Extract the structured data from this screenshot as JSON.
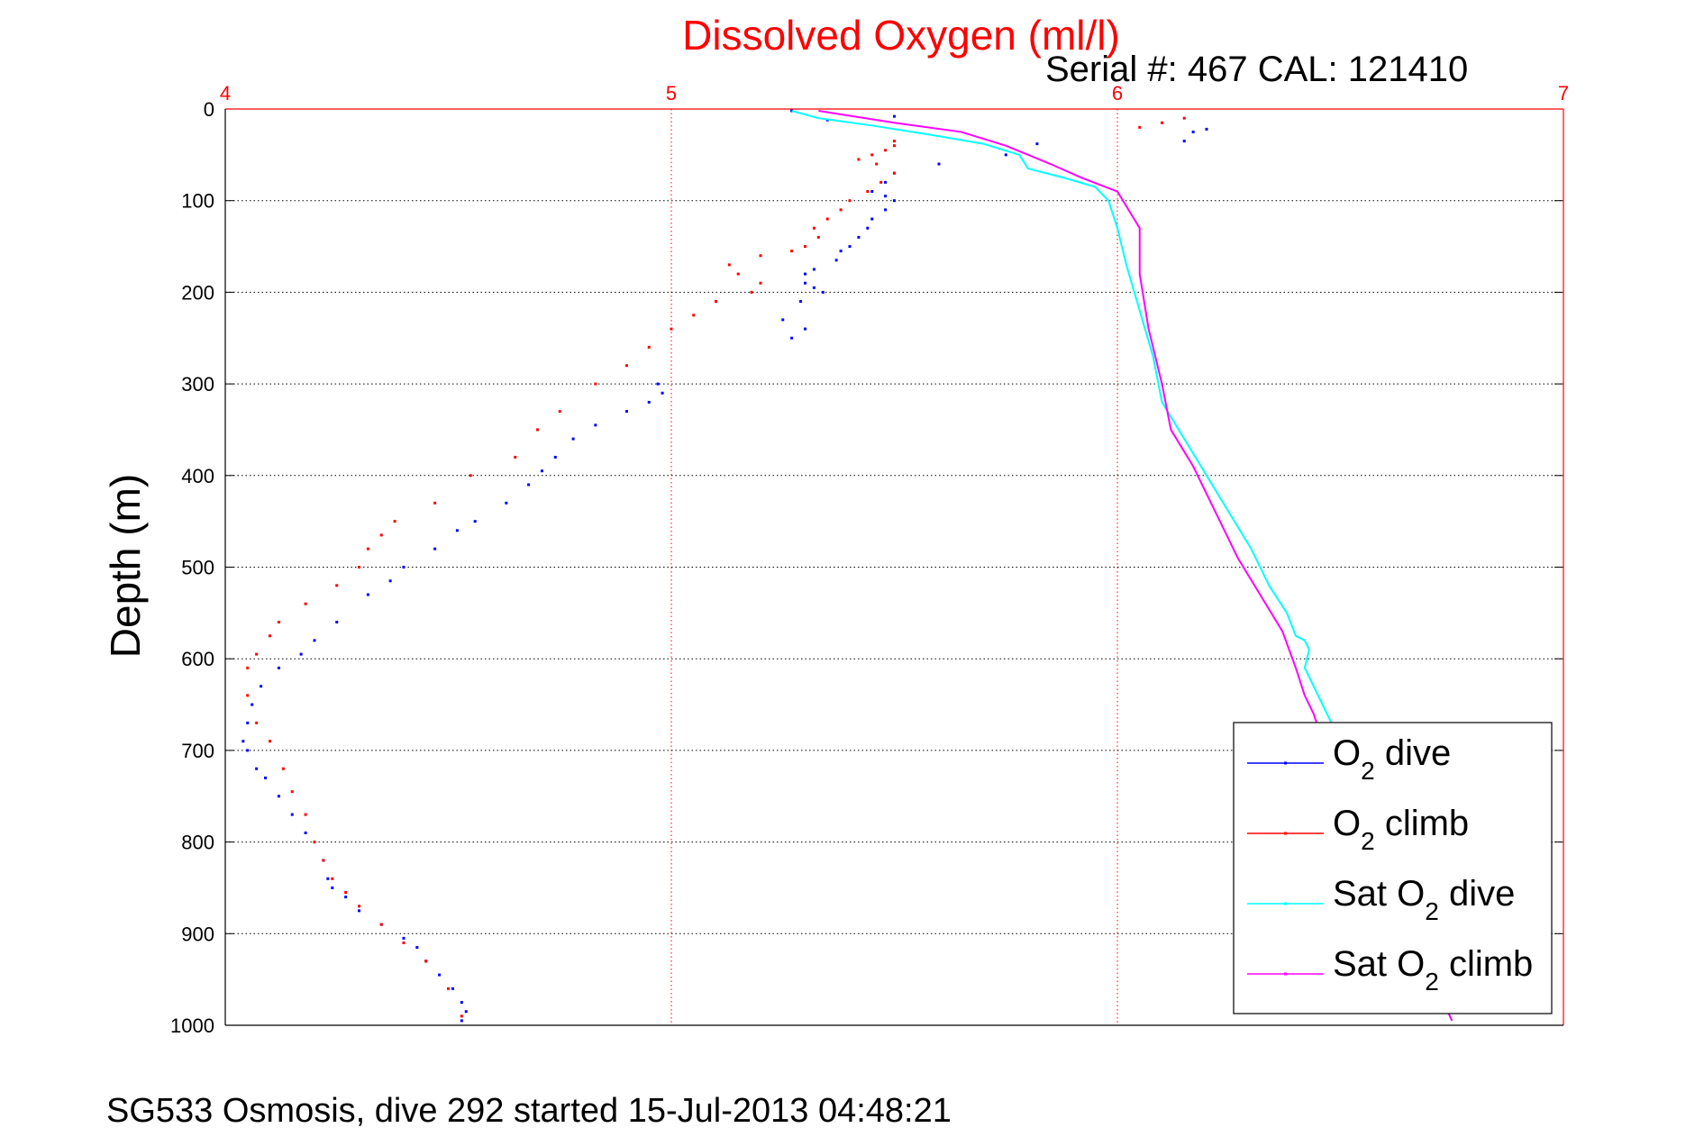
{
  "figure": {
    "title": "Dissolved Oxygen (ml/l)",
    "serial_label": "Serial #: 467  CAL: 121410",
    "footer": "SG533 Osmosis, dive 292 started 15-Jul-2013 04:48:21"
  },
  "colors": {
    "o2_dive": "#0000ff",
    "o2_climb": "#ff0000",
    "sat_dive": "#00ffff",
    "sat_climb": "#ff00ff",
    "top_axis": "#ff0000",
    "grid": "#000000"
  },
  "chart_data": {
    "type": "scatter",
    "title": "Dissolved Oxygen (ml/l)",
    "xlabel": "",
    "ylabel": "Depth (m)",
    "xlim": [
      4,
      7
    ],
    "ylim": [
      0,
      1000
    ],
    "y_reversed": true,
    "x_axis_position": "top",
    "x_ticks": [
      "4",
      "5",
      "6",
      "7"
    ],
    "y_ticks": [
      "0",
      "100",
      "200",
      "300",
      "400",
      "500",
      "600",
      "700",
      "800",
      "900",
      "1000"
    ],
    "grid": true,
    "legend_position": "bottom-right",
    "series": [
      {
        "legend": {
          "main": "O",
          "sub": "2",
          "rest": " dive"
        },
        "color": "#0000ff",
        "style": "dots",
        "x": [
          5.27,
          5.5,
          6.17,
          5.35,
          6.2,
          5.82,
          6.15,
          5.75,
          5.6,
          5.5,
          5.48,
          5.45,
          5.48,
          5.5,
          5.48,
          5.45,
          5.44,
          5.42,
          5.4,
          5.38,
          5.37,
          5.32,
          5.3,
          5.3,
          5.32,
          5.34,
          5.29,
          5.25,
          5.3,
          5.27,
          4.97,
          4.98,
          4.95,
          4.9,
          4.83,
          4.78,
          4.74,
          4.71,
          4.68,
          4.63,
          4.56,
          4.52,
          4.47,
          4.4,
          4.37,
          4.32,
          4.25,
          4.2,
          4.17,
          4.12,
          4.08,
          4.06,
          4.05,
          4.04,
          4.05,
          4.07,
          4.09,
          4.12,
          4.15,
          4.18,
          4.2,
          4.22,
          4.23,
          4.24,
          4.27,
          4.3,
          4.35,
          4.4,
          4.43,
          4.45,
          4.48,
          4.51,
          4.53,
          4.54,
          4.53
        ],
        "y": [
          2,
          8,
          25,
          12,
          22,
          38,
          35,
          50,
          60,
          70,
          80,
          90,
          95,
          100,
          110,
          120,
          130,
          140,
          150,
          155,
          165,
          175,
          180,
          190,
          195,
          200,
          210,
          230,
          240,
          250,
          300,
          310,
          320,
          330,
          345,
          360,
          380,
          395,
          410,
          430,
          450,
          460,
          480,
          500,
          515,
          530,
          560,
          580,
          595,
          610,
          630,
          650,
          670,
          690,
          700,
          720,
          730,
          750,
          770,
          790,
          800,
          820,
          840,
          850,
          860,
          875,
          890,
          905,
          915,
          930,
          945,
          960,
          975,
          985,
          995
        ]
      },
      {
        "legend": {
          "main": "O",
          "sub": "2",
          "rest": " climb"
        },
        "color": "#ff0000",
        "style": "dots",
        "x": [
          6.15,
          6.1,
          6.05,
          5.5,
          5.5,
          5.48,
          5.45,
          5.42,
          5.46,
          5.5,
          5.47,
          5.44,
          5.4,
          5.38,
          5.35,
          5.32,
          5.33,
          5.3,
          5.27,
          5.2,
          5.13,
          5.15,
          5.2,
          5.18,
          5.1,
          5.05,
          5.0,
          4.95,
          4.9,
          4.83,
          4.75,
          4.7,
          4.65,
          4.55,
          4.47,
          4.38,
          4.35,
          4.32,
          4.3,
          4.25,
          4.18,
          4.12,
          4.1,
          4.07,
          4.05,
          4.05,
          4.07,
          4.1,
          4.13,
          4.15,
          4.18,
          4.2,
          4.22,
          4.24,
          4.27,
          4.3,
          4.35,
          4.4,
          4.45,
          4.5,
          4.53
        ],
        "y": [
          10,
          15,
          20,
          35,
          40,
          45,
          50,
          55,
          60,
          70,
          80,
          90,
          100,
          110,
          120,
          130,
          140,
          150,
          155,
          160,
          170,
          180,
          190,
          200,
          210,
          225,
          240,
          260,
          280,
          300,
          330,
          350,
          380,
          400,
          430,
          450,
          465,
          480,
          500,
          520,
          540,
          560,
          575,
          595,
          610,
          640,
          670,
          690,
          720,
          745,
          770,
          800,
          820,
          840,
          855,
          870,
          890,
          910,
          930,
          960,
          990
        ]
      },
      {
        "legend": {
          "main": "Sat O",
          "sub": "2",
          "rest": " dive"
        },
        "color": "#00ffff",
        "style": "line",
        "x": [
          5.27,
          5.33,
          5.45,
          5.58,
          5.7,
          5.78,
          5.8,
          5.88,
          5.95,
          5.98,
          6.0,
          6.02,
          6.05,
          6.08,
          6.1,
          6.15,
          6.2,
          6.25,
          6.3,
          6.34,
          6.38,
          6.4,
          6.42,
          6.43,
          6.42,
          6.45,
          6.48,
          6.5,
          6.52,
          6.55,
          6.6,
          6.65,
          6.7,
          6.75
        ],
        "y": [
          2,
          10,
          18,
          28,
          38,
          50,
          65,
          75,
          85,
          100,
          130,
          170,
          220,
          270,
          320,
          360,
          400,
          440,
          480,
          520,
          550,
          575,
          580,
          590,
          610,
          640,
          670,
          700,
          730,
          760,
          820,
          880,
          940,
          995
        ]
      },
      {
        "legend": {
          "main": "Sat O",
          "sub": "2",
          "rest": " climb"
        },
        "color": "#ff00ff",
        "style": "line",
        "x": [
          5.33,
          5.5,
          5.65,
          5.75,
          5.85,
          5.92,
          6.0,
          6.05,
          6.05,
          6.07,
          6.1,
          6.12,
          6.17,
          6.22,
          6.27,
          6.32,
          6.37,
          6.4,
          6.42,
          6.44,
          6.46,
          6.5,
          6.55,
          6.6,
          6.65,
          6.7,
          6.75
        ],
        "y": [
          2,
          15,
          25,
          40,
          60,
          75,
          90,
          130,
          180,
          240,
          300,
          350,
          390,
          440,
          490,
          530,
          570,
          610,
          640,
          660,
          690,
          720,
          760,
          820,
          880,
          940,
          995
        ]
      }
    ]
  }
}
